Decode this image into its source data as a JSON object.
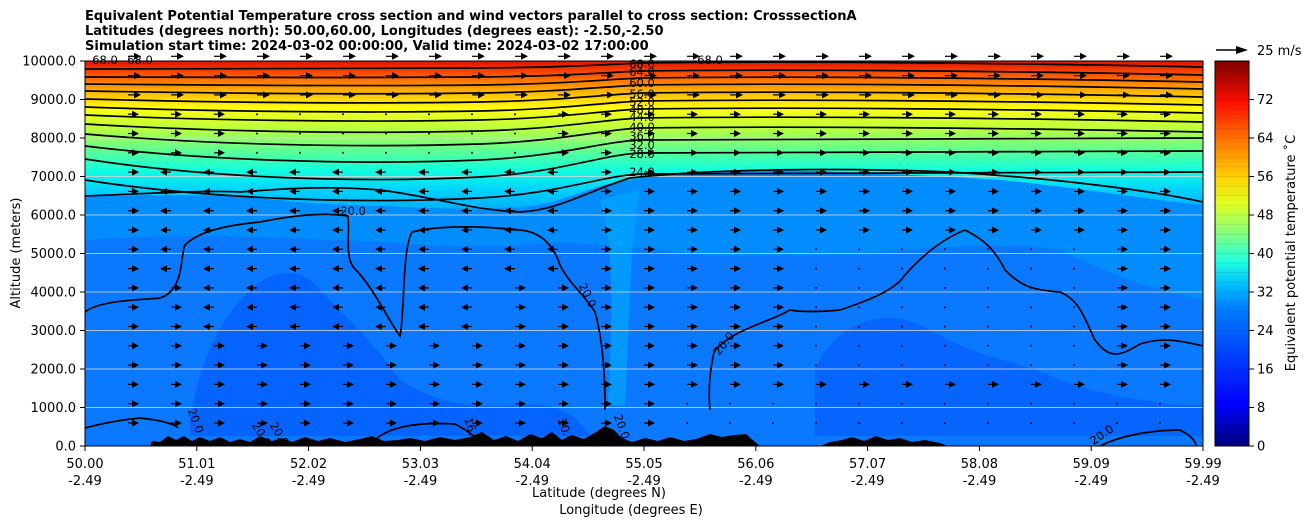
{
  "title": {
    "line1": "Equivalent Potential Temperature cross section and wind vectors parallel to cross section: CrosssectionA",
    "line2": "Latitudes (degrees north): 50.00,60.00, Longitudes (degrees east): -2.50,-2.50",
    "line3": "Simulation start time: 2024-03-02 00:00:00, Valid time: 2024-03-02 17:00:00"
  },
  "chart_data": {
    "type": "heatmap",
    "subtype": "filled contour cross section with contour lines and wind vectors",
    "y_label": "Altitude (meters)",
    "x_label_1": "Latitude (degrees N)",
    "x_label_2": "Longitude (degrees E)",
    "ylim": [
      0,
      10000
    ],
    "y_ticks": [
      "0.0",
      "1000.0",
      "2000.0",
      "3000.0",
      "4000.0",
      "5000.0",
      "6000.0",
      "7000.0",
      "8000.0",
      "9000.0",
      "10000.0"
    ],
    "x_ticks_lat": [
      "50.00",
      "51.01",
      "52.02",
      "53.03",
      "54.04",
      "55.05",
      "56.06",
      "57.07",
      "58.08",
      "59.09",
      "59.99"
    ],
    "x_ticks_lon": [
      "-2.49",
      "-2.49",
      "-2.49",
      "-2.49",
      "-2.49",
      "-2.49",
      "-2.49",
      "-2.49",
      "-2.49",
      "-2.49",
      "-2.49"
    ],
    "grid": "horizontal lines",
    "colorbar": {
      "label": "Equivalent potential temperature ˚C",
      "range": [
        0,
        80
      ],
      "ticks": [
        "0",
        "8",
        "16",
        "24",
        "32",
        "40",
        "48",
        "56",
        "64",
        "72"
      ],
      "colormap": "jet"
    },
    "contour_labels": [
      "68.0",
      "64.0",
      "60.0",
      "56.0",
      "52.0",
      "48.0",
      "44.0",
      "40.0",
      "36.0",
      "32.0",
      "28.0",
      "24.0",
      "20.0",
      "16.0"
    ],
    "left_top_labels": [
      "68.0",
      "68.0"
    ],
    "right_top_label": "68.0",
    "lower_labels": [
      "20.0",
      "20.0",
      "20.0",
      "20.0",
      "20.0",
      "20.0",
      "16.0",
      "20.0",
      "20.0",
      "20.0"
    ],
    "wind_reference": {
      "label": "25 m/s",
      "speed": 25
    },
    "terrain_color": "#000000",
    "colors": {
      "low_level": "#0a6cff",
      "mid_level": "#0088ff",
      "upper_ramp": [
        "#00b0ff",
        "#00ffd0",
        "#a0ff40",
        "#ffff00",
        "#ffb000",
        "#ff4000"
      ]
    }
  }
}
